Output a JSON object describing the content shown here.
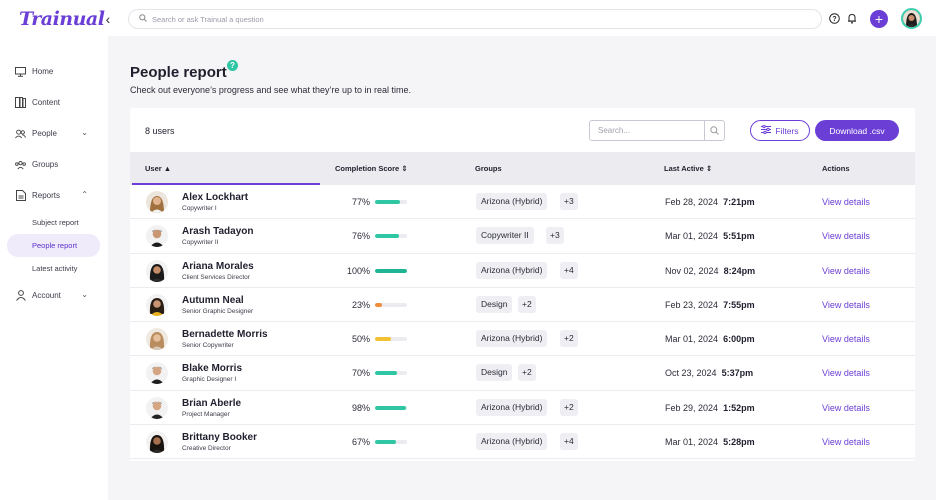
{
  "brand": {
    "logo_text": "Trainual",
    "accent": "#6b3fd6",
    "teal": "#2fc7a3"
  },
  "topbar": {
    "search_placeholder": "Search or ask Trainual a question",
    "icons": [
      "chevron-left-icon",
      "search-icon",
      "help-icon",
      "bell-icon",
      "plus-icon",
      "avatar"
    ]
  },
  "sidebar": {
    "items": [
      {
        "label": "Home",
        "icon": "monitor-icon"
      },
      {
        "label": "Content",
        "icon": "book-icon"
      },
      {
        "label": "People",
        "icon": "people-icon",
        "chevron": "down"
      },
      {
        "label": "Groups",
        "icon": "groups-icon"
      },
      {
        "label": "Reports",
        "icon": "report-icon",
        "chevron": "up"
      },
      {
        "label": "Account",
        "icon": "user-icon",
        "chevron": "down"
      }
    ],
    "report_sub": [
      {
        "label": "Subject report",
        "active": false
      },
      {
        "label": "People report",
        "active": true
      },
      {
        "label": "Latest activity",
        "active": false
      }
    ]
  },
  "page": {
    "title": "People report",
    "help": "?",
    "subtitle": "Check out everyone’s progress and see what they’re up to in real time."
  },
  "table": {
    "count_label": "8 users",
    "search_placeholder": "Search...",
    "filters_label": "Filters",
    "download_label": "Download .csv",
    "headers": {
      "user": "User",
      "completion": "Completion Score",
      "groups": "Groups",
      "last_active": "Last Active",
      "actions": "Actions"
    },
    "rows": [
      {
        "name": "Alex Lockhart",
        "title": "Copywriter I",
        "pct": "77%",
        "progress": 0.77,
        "bar_color": "#2fc7a3",
        "group": "Arizona (Hybrid)",
        "more": "+3",
        "date": "Feb 28, 2024",
        "time": "7:21pm",
        "action": "View details"
      },
      {
        "name": "Arash Tadayon",
        "title": "Copywriter II",
        "pct": "76%",
        "progress": 0.76,
        "bar_color": "#2fc7a3",
        "group": "Copywriter II",
        "more": "+3",
        "date": "Mar 01, 2024",
        "time": "5:51pm",
        "action": "View details"
      },
      {
        "name": "Ariana Morales",
        "title": "Client Services Director",
        "pct": "100%",
        "progress": 1.0,
        "bar_color": "#1fb594",
        "group": "Arizona (Hybrid)",
        "more": "+4",
        "date": "Nov 02, 2024",
        "time": "8:24pm",
        "action": "View details"
      },
      {
        "name": "Autumn Neal",
        "title": "Senior Graphic Designer",
        "pct": "23%",
        "progress": 0.23,
        "bar_color": "#f08c3a",
        "group": "Design",
        "more": "+2",
        "date": "Feb 23, 2024",
        "time": "7:55pm",
        "action": "View details"
      },
      {
        "name": "Bernadette Morris",
        "title": "Senior Copywriter",
        "pct": "50%",
        "progress": 0.5,
        "bar_color": "#f2c232",
        "group": "Arizona (Hybrid)",
        "more": "+2",
        "date": "Mar 01, 2024",
        "time": "6:00pm",
        "action": "View details"
      },
      {
        "name": "Blake Morris",
        "title": "Graphic Designer I",
        "pct": "70%",
        "progress": 0.7,
        "bar_color": "#2fc7a3",
        "group": "Design",
        "more": "+2",
        "date": "Oct 23, 2024",
        "time": "5:37pm",
        "action": "View details"
      },
      {
        "name": "Brian Aberle",
        "title": "Project Manager",
        "pct": "98%",
        "progress": 0.98,
        "bar_color": "#2fc7a3",
        "group": "Arizona (Hybrid)",
        "more": "+2",
        "date": "Feb 29, 2024",
        "time": "1:52pm",
        "action": "View details"
      },
      {
        "name": "Brittany Booker",
        "title": "Creative Director",
        "pct": "67%",
        "progress": 0.67,
        "bar_color": "#2fc7a3",
        "group": "Arizona (Hybrid)",
        "more": "+4",
        "date": "Mar 01, 2024",
        "time": "5:28pm",
        "action": "View details"
      }
    ]
  }
}
